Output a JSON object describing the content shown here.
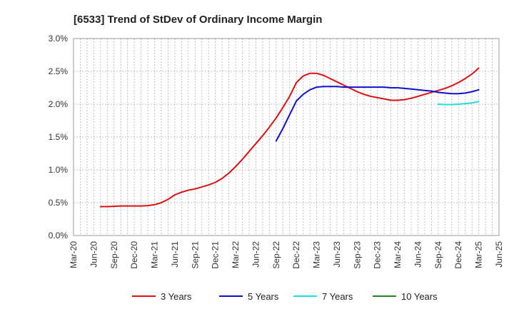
{
  "chart_data": {
    "type": "line",
    "title": "[6533]  Trend of StDev of Ordinary Income Margin",
    "xlabel": "",
    "ylabel": "",
    "x_ticks": [
      "Mar-20",
      "Jun-20",
      "Sep-20",
      "Dec-20",
      "Mar-21",
      "Jun-21",
      "Sep-21",
      "Dec-21",
      "Mar-22",
      "Jun-22",
      "Sep-22",
      "Dec-22",
      "Mar-23",
      "Jun-23",
      "Sep-23",
      "Dec-23",
      "Mar-24",
      "Jun-24",
      "Sep-24",
      "Dec-24",
      "Mar-25",
      "Jun-25"
    ],
    "y_ticks": [
      "0.0%",
      "0.5%",
      "1.0%",
      "1.5%",
      "2.0%",
      "2.5%",
      "3.0%"
    ],
    "ylim": [
      0,
      3.0
    ],
    "grid": true,
    "legend_position": "bottom",
    "series": [
      {
        "name": "3 Years",
        "color": "#dd1111",
        "points": [
          [
            "Jul-20",
            0.44
          ],
          [
            "Aug-20",
            0.44
          ],
          [
            "Sep-20",
            0.445
          ],
          [
            "Oct-20",
            0.45
          ],
          [
            "Nov-20",
            0.45
          ],
          [
            "Dec-20",
            0.45
          ],
          [
            "Jan-21",
            0.45
          ],
          [
            "Feb-21",
            0.455
          ],
          [
            "Mar-21",
            0.47
          ],
          [
            "Apr-21",
            0.5
          ],
          [
            "May-21",
            0.55
          ],
          [
            "Jun-21",
            0.62
          ],
          [
            "Jul-21",
            0.66
          ],
          [
            "Aug-21",
            0.69
          ],
          [
            "Sep-21",
            0.71
          ],
          [
            "Oct-21",
            0.74
          ],
          [
            "Nov-21",
            0.77
          ],
          [
            "Dec-21",
            0.81
          ],
          [
            "Jan-22",
            0.87
          ],
          [
            "Feb-22",
            0.95
          ],
          [
            "Mar-22",
            1.05
          ],
          [
            "Apr-22",
            1.16
          ],
          [
            "May-22",
            1.28
          ],
          [
            "Jun-22",
            1.4
          ],
          [
            "Jul-22",
            1.52
          ],
          [
            "Aug-22",
            1.65
          ],
          [
            "Sep-22",
            1.79
          ],
          [
            "Oct-22",
            1.95
          ],
          [
            "Nov-22",
            2.12
          ],
          [
            "Dec-22",
            2.33
          ],
          [
            "Jan-23",
            2.43
          ],
          [
            "Feb-23",
            2.47
          ],
          [
            "Mar-23",
            2.47
          ],
          [
            "Apr-23",
            2.44
          ],
          [
            "May-23",
            2.39
          ],
          [
            "Jun-23",
            2.34
          ],
          [
            "Jul-23",
            2.29
          ],
          [
            "Aug-23",
            2.24
          ],
          [
            "Sep-23",
            2.19
          ],
          [
            "Oct-23",
            2.15
          ],
          [
            "Nov-23",
            2.12
          ],
          [
            "Dec-23",
            2.1
          ],
          [
            "Jan-24",
            2.08
          ],
          [
            "Feb-24",
            2.06
          ],
          [
            "Mar-24",
            2.06
          ],
          [
            "Apr-24",
            2.07
          ],
          [
            "May-24",
            2.09
          ],
          [
            "Jun-24",
            2.12
          ],
          [
            "Jul-24",
            2.15
          ],
          [
            "Aug-24",
            2.18
          ],
          [
            "Sep-24",
            2.21
          ],
          [
            "Oct-24",
            2.24
          ],
          [
            "Nov-24",
            2.28
          ],
          [
            "Dec-24",
            2.33
          ],
          [
            "Jan-25",
            2.39
          ],
          [
            "Feb-25",
            2.46
          ],
          [
            "Mar-25",
            2.55
          ]
        ]
      },
      {
        "name": "5 Years",
        "color": "#1111cc",
        "points": [
          [
            "Sep-22",
            1.44
          ],
          [
            "Oct-22",
            1.63
          ],
          [
            "Nov-22",
            1.84
          ],
          [
            "Dec-22",
            2.05
          ],
          [
            "Jan-23",
            2.15
          ],
          [
            "Feb-23",
            2.22
          ],
          [
            "Mar-23",
            2.26
          ],
          [
            "Apr-23",
            2.27
          ],
          [
            "May-23",
            2.27
          ],
          [
            "Jun-23",
            2.27
          ],
          [
            "Jul-23",
            2.26
          ],
          [
            "Aug-23",
            2.26
          ],
          [
            "Sep-23",
            2.26
          ],
          [
            "Oct-23",
            2.26
          ],
          [
            "Nov-23",
            2.26
          ],
          [
            "Dec-23",
            2.26
          ],
          [
            "Jan-24",
            2.26
          ],
          [
            "Feb-24",
            2.25
          ],
          [
            "Mar-24",
            2.25
          ],
          [
            "Apr-24",
            2.24
          ],
          [
            "May-24",
            2.23
          ],
          [
            "Jun-24",
            2.22
          ],
          [
            "Jul-24",
            2.21
          ],
          [
            "Aug-24",
            2.2
          ],
          [
            "Sep-24",
            2.18
          ],
          [
            "Oct-24",
            2.17
          ],
          [
            "Nov-24",
            2.16
          ],
          [
            "Dec-24",
            2.16
          ],
          [
            "Jan-25",
            2.17
          ],
          [
            "Feb-25",
            2.19
          ],
          [
            "Mar-25",
            2.22
          ]
        ]
      },
      {
        "name": "7 Years",
        "color": "#22dddd",
        "points": [
          [
            "Sep-24",
            2.0
          ],
          [
            "Oct-24",
            1.995
          ],
          [
            "Nov-24",
            1.995
          ],
          [
            "Dec-24",
            2.0
          ],
          [
            "Jan-25",
            2.01
          ],
          [
            "Feb-25",
            2.02
          ],
          [
            "Mar-25",
            2.04
          ]
        ]
      },
      {
        "name": "10 Years",
        "color": "#228822",
        "points": []
      }
    ]
  }
}
